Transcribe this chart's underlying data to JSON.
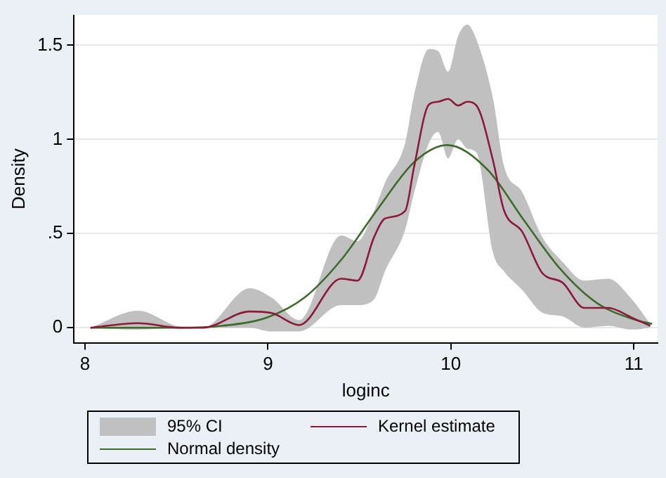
{
  "chart_data": {
    "type": "line",
    "xlabel": "loginc",
    "ylabel": "Density",
    "xlim": [
      7.94,
      11.13
    ],
    "xticks": [
      8,
      9,
      10,
      11
    ],
    "ylim": [
      -0.08,
      1.66
    ],
    "yticks": [
      0,
      {
        "value": 0.5,
        "label": ".5"
      },
      1,
      {
        "value": 1.5,
        "label": "1.5"
      }
    ],
    "grid": "y",
    "legend": "bottom",
    "marker": "none",
    "line_style": "solid",
    "annotations": [
      "95% CI"
    ],
    "series": [
      {
        "name": "Kernel estimate",
        "type": "line",
        "color": "#8b1a3a",
        "x": [
          8.03,
          8.29,
          8.52,
          8.645,
          8.9,
          9.02,
          9.17,
          9.4,
          9.49,
          9.58,
          9.64,
          9.75,
          9.8,
          9.88,
          9.93,
          9.985,
          10.04,
          10.09,
          10.14,
          10.23,
          10.29,
          10.39,
          10.5,
          10.61,
          10.73,
          10.86,
          10.99,
          11.09
        ],
        "values": [
          0,
          0.024,
          0,
          0,
          0.086,
          0.078,
          0.014,
          0.26,
          0.25,
          0.48,
          0.58,
          0.62,
          0.86,
          1.185,
          1.2,
          1.215,
          1.18,
          1.2,
          1.18,
          0.89,
          0.625,
          0.51,
          0.29,
          0.24,
          0.105,
          0.105,
          0.053,
          0.01
        ],
        "lower": [
          0,
          -0.01,
          0,
          0,
          0,
          -0.02,
          -0.02,
          0.12,
          0.12,
          0.15,
          0.3,
          0.52,
          0.72,
          0.98,
          1.04,
          0.9,
          1.0,
          0.95,
          0.93,
          0.4,
          0.3,
          0.2,
          0.08,
          0.06,
          0,
          0.01,
          -0.01,
          0
        ],
        "upper": [
          0,
          0.09,
          0.005,
          0,
          0.21,
          0.16,
          0.04,
          0.49,
          0.46,
          0.62,
          0.77,
          0.98,
          1.24,
          1.48,
          1.47,
          1.36,
          1.55,
          1.61,
          1.53,
          1.22,
          0.86,
          0.72,
          0.48,
          0.35,
          0.25,
          0.26,
          0.15,
          0.02
        ]
      },
      {
        "name": "Normal density",
        "type": "line",
        "color": "#3d6b2a",
        "x": [
          8.03,
          8.25,
          8.5,
          8.75,
          9.0,
          9.2,
          9.4,
          9.6,
          9.8,
          9.98,
          10.2,
          10.4,
          10.6,
          10.8,
          11.0,
          11.1
        ],
        "values": [
          0,
          0,
          0,
          0.01,
          0.056,
          0.16,
          0.36,
          0.63,
          0.88,
          0.97,
          0.84,
          0.57,
          0.31,
          0.13,
          0.044,
          0.02
        ]
      }
    ]
  }
}
